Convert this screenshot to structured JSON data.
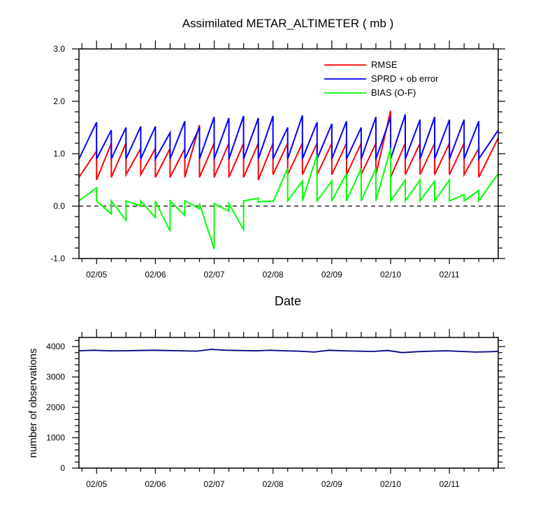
{
  "chart_data": [
    {
      "type": "line",
      "title": "Assimilated METAR_ALTIMETER ( mb )",
      "xlabel": "Date",
      "ylabel": "",
      "ylim": [
        -1.0,
        3.0
      ],
      "xlim": [
        4.7,
        11.83
      ],
      "yticks": [
        -1.0,
        0.0,
        1.0,
        2.0,
        3.0
      ],
      "ytick_labels": [
        "-1.0",
        "0.0",
        "1.0",
        "2.0",
        "3.0"
      ],
      "xticks": [
        5,
        6,
        7,
        8,
        9,
        10,
        11
      ],
      "xtick_labels": [
        "02/05",
        "02/06",
        "02/07",
        "02/08",
        "02/09",
        "02/10",
        "02/11"
      ],
      "zero_line": "dashed",
      "legend_position": "top-right",
      "series": [
        {
          "name": "RMSE",
          "color": "#ff0000",
          "x": [
            4.7,
            5.0,
            5.0,
            5.25,
            5.25,
            5.5,
            5.5,
            5.75,
            5.75,
            6.0,
            6.0,
            6.25,
            6.25,
            6.5,
            6.5,
            6.75,
            6.75,
            7.0,
            7.0,
            7.25,
            7.25,
            7.5,
            7.5,
            7.75,
            7.75,
            8.0,
            8.0,
            8.25,
            8.25,
            8.5,
            8.5,
            8.75,
            8.75,
            9.0,
            9.0,
            9.25,
            9.25,
            9.5,
            9.5,
            9.75,
            9.75,
            10.0,
            10.0,
            10.25,
            10.25,
            10.5,
            10.5,
            10.75,
            10.75,
            11.0,
            11.0,
            11.25,
            11.25,
            11.5,
            11.5,
            11.83
          ],
          "y": [
            0.55,
            1.05,
            0.5,
            1.2,
            0.55,
            1.2,
            0.6,
            1.1,
            0.6,
            1.1,
            0.55,
            1.1,
            0.55,
            1.1,
            0.55,
            1.55,
            0.55,
            1.2,
            0.55,
            1.2,
            0.55,
            1.2,
            0.55,
            1.2,
            0.5,
            1.2,
            0.6,
            1.2,
            0.6,
            1.2,
            0.6,
            1.2,
            0.6,
            1.2,
            0.6,
            1.2,
            0.6,
            1.2,
            0.6,
            1.2,
            0.6,
            1.82,
            0.55,
            1.2,
            0.6,
            1.2,
            0.6,
            1.2,
            0.6,
            1.2,
            0.6,
            1.2,
            0.6,
            1.1,
            0.55,
            1.3
          ]
        },
        {
          "name": "SPRD + ob error",
          "color": "#0000ff",
          "x": [
            4.7,
            5.0,
            5.0,
            5.25,
            5.25,
            5.5,
            5.5,
            5.75,
            5.75,
            6.0,
            6.0,
            6.25,
            6.25,
            6.5,
            6.5,
            6.75,
            6.75,
            7.0,
            7.0,
            7.25,
            7.25,
            7.5,
            7.5,
            7.75,
            7.75,
            8.0,
            8.0,
            8.25,
            8.25,
            8.5,
            8.5,
            8.75,
            8.75,
            9.0,
            9.0,
            9.25,
            9.25,
            9.5,
            9.5,
            9.75,
            9.75,
            10.0,
            10.0,
            10.25,
            10.25,
            10.5,
            10.5,
            10.75,
            10.75,
            11.0,
            11.0,
            11.25,
            11.25,
            11.5,
            11.5,
            11.83
          ],
          "y": [
            0.9,
            1.6,
            0.9,
            1.45,
            0.9,
            1.5,
            0.9,
            1.52,
            0.9,
            1.52,
            0.9,
            1.4,
            0.9,
            1.62,
            0.9,
            1.5,
            0.9,
            1.7,
            0.9,
            1.68,
            0.9,
            1.72,
            0.9,
            1.68,
            0.9,
            1.72,
            0.9,
            1.5,
            0.9,
            1.73,
            0.9,
            1.6,
            0.9,
            1.57,
            0.9,
            1.62,
            0.9,
            1.5,
            0.9,
            1.7,
            0.9,
            1.7,
            0.9,
            1.75,
            0.9,
            1.65,
            0.9,
            1.7,
            0.9,
            1.65,
            0.9,
            1.65,
            0.9,
            1.62,
            0.9,
            1.45
          ]
        },
        {
          "name": "BIAS (O-F)",
          "color": "#00ff00",
          "x": [
            4.7,
            5.0,
            5.0,
            5.25,
            5.25,
            5.5,
            5.5,
            5.75,
            5.75,
            6.0,
            6.0,
            6.25,
            6.25,
            6.5,
            6.5,
            6.75,
            6.75,
            7.0,
            7.0,
            7.25,
            7.25,
            7.5,
            7.5,
            7.75,
            7.75,
            8.0,
            8.0,
            8.25,
            8.25,
            8.5,
            8.5,
            8.75,
            8.75,
            9.0,
            9.0,
            9.25,
            9.25,
            9.5,
            9.5,
            9.75,
            9.75,
            10.0,
            10.0,
            10.25,
            10.25,
            10.5,
            10.5,
            10.75,
            10.75,
            11.0,
            11.0,
            11.25,
            11.25,
            11.5,
            11.5,
            11.83
          ],
          "y": [
            0.1,
            0.35,
            0.1,
            -0.15,
            0.1,
            -0.27,
            0.1,
            0.0,
            0.1,
            -0.22,
            0.1,
            -0.48,
            0.1,
            -0.18,
            0.1,
            -0.05,
            0.05,
            -0.82,
            0.05,
            -0.1,
            0.05,
            -0.45,
            0.1,
            0.15,
            0.08,
            0.1,
            0.08,
            0.72,
            0.1,
            0.48,
            0.1,
            0.98,
            0.1,
            0.48,
            0.1,
            0.62,
            0.1,
            0.72,
            0.1,
            0.72,
            0.1,
            1.1,
            0.1,
            0.5,
            0.1,
            0.5,
            0.1,
            0.48,
            0.1,
            0.5,
            0.1,
            0.22,
            0.1,
            0.3,
            0.1,
            0.62
          ]
        }
      ]
    },
    {
      "type": "line",
      "title": "",
      "xlabel": "",
      "ylabel": "number of observations",
      "ylim": [
        0,
        4300
      ],
      "xlim": [
        4.7,
        11.83
      ],
      "yticks": [
        0,
        1000,
        2000,
        3000,
        4000
      ],
      "ytick_labels": [
        "0",
        "1000",
        "2000",
        "3000",
        "4000"
      ],
      "xticks": [
        5,
        6,
        7,
        8,
        9,
        10,
        11
      ],
      "xtick_labels": [
        "02/05",
        "02/06",
        "02/07",
        "02/08",
        "02/09",
        "02/10",
        "02/11"
      ],
      "series": [
        {
          "name": "",
          "color": "#000080",
          "x": [
            4.7,
            4.95,
            5.2,
            5.45,
            5.7,
            5.95,
            6.2,
            6.45,
            6.7,
            6.95,
            7.2,
            7.45,
            7.7,
            7.95,
            8.2,
            8.45,
            8.7,
            8.95,
            9.2,
            9.45,
            9.7,
            9.95,
            10.2,
            10.45,
            10.7,
            10.95,
            11.2,
            11.45,
            11.7,
            11.83
          ],
          "y": [
            3860,
            3880,
            3860,
            3860,
            3870,
            3880,
            3870,
            3860,
            3850,
            3910,
            3880,
            3870,
            3860,
            3880,
            3860,
            3850,
            3820,
            3880,
            3860,
            3850,
            3840,
            3870,
            3800,
            3830,
            3850,
            3860,
            3840,
            3820,
            3830,
            3840
          ]
        }
      ]
    }
  ]
}
